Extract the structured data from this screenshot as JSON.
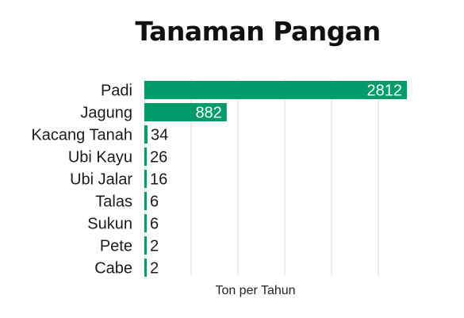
{
  "chart_data": {
    "type": "bar",
    "orientation": "horizontal",
    "title": "Tanaman Pangan",
    "xlabel": "Ton per Tahun",
    "ylabel": "",
    "categories": [
      "Padi",
      "Jagung",
      "Kacang Tanah",
      "Ubi Kayu",
      "Ubi Jalar",
      "Talas",
      "Sukun",
      "Pete",
      "Cabe"
    ],
    "values": [
      2812,
      882,
      34,
      26,
      16,
      6,
      6,
      2,
      2
    ],
    "xlim": [
      0,
      2812
    ],
    "grid": true,
    "legend": "none",
    "bar_color": "#009b6a",
    "gridline_color": "#d9d9d9",
    "label_inside_color": "#ffffff",
    "label_outside_color": "#1a1a1a"
  }
}
